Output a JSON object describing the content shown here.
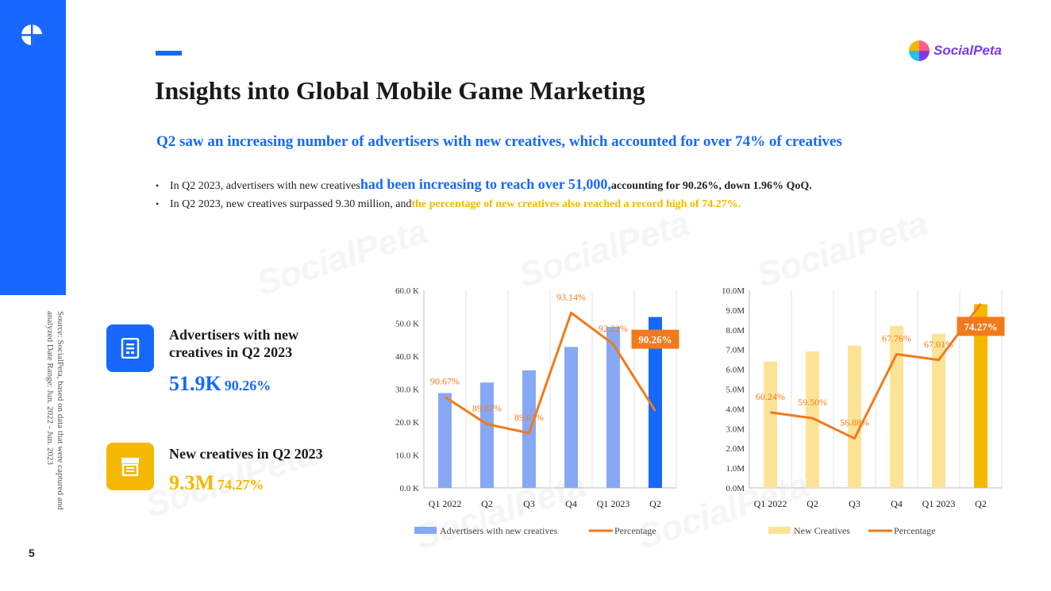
{
  "page_number": "5",
  "source_note": "Source: SocialPeta, based on data that were captured and analyzed Date Range: Jun. 2022 - Jun. 2023",
  "brand_name": "SocialPeta",
  "title": "Insights into Global Mobile Game Marketing",
  "subtitle": "Q2 saw an increasing number of advertisers with new creatives, which accounted for over 74% of creatives",
  "bullets": [
    {
      "prefix": "In Q2 2023, advertisers with new creatives ",
      "highlight": "had been increasing to reach over 51,000,",
      "suffix": " accounting for 90.26%, down 1.96% QoQ."
    },
    {
      "prefix": "In Q2 2023, new creatives surpassed 9.30 million, and ",
      "highlight": "the percentage of new creatives also reached a record high of 74.27%."
    }
  ],
  "cards": [
    {
      "label": "Advertisers with new creatives in Q2 2023",
      "value": "51.9K",
      "percent": "90.26%",
      "color": "#1668ff",
      "icon": "document-icon"
    },
    {
      "label": "New creatives in Q2 2023",
      "value": "9.3M",
      "percent": "74.27%",
      "color": "#f5b800",
      "icon": "store-icon"
    }
  ],
  "chart_data": [
    {
      "type": "bar",
      "categories": [
        "Q1 2022",
        "Q2",
        "Q3",
        "Q4",
        "Q1 2023",
        "Q2"
      ],
      "series": [
        {
          "name": "Advertisers with new creatives",
          "type": "bar",
          "values": [
            28.8,
            32.0,
            35.7,
            42.8,
            48.9,
            51.9
          ],
          "color": "#86a8f5",
          "highlight_color": "#1668ff"
        },
        {
          "name": "Percentage",
          "type": "line",
          "values": [
            90.67,
            89.87,
            89.61,
            93.14,
            92.22,
            90.26
          ],
          "labels": [
            "90.67%",
            "89.87%",
            "89.61%",
            "93.14%",
            "92.22%",
            "90.26%"
          ],
          "color": "#f27a1a"
        }
      ],
      "y_ticks": [
        "0.0 K",
        "10.0 K",
        "20.0 K",
        "30.0 K",
        "40.0 K",
        "50.0 K",
        "60.0 K"
      ],
      "ylim": [
        0,
        60
      ],
      "line_range": [
        88.0,
        93.8
      ],
      "legend": "bottom"
    },
    {
      "type": "bar",
      "categories": [
        "Q1 2022",
        "Q2",
        "Q3",
        "Q4",
        "Q1 2023",
        "Q2"
      ],
      "series": [
        {
          "name": "New Creatives",
          "type": "bar",
          "values": [
            6.4,
            6.9,
            7.2,
            8.2,
            7.8,
            9.3
          ],
          "color": "#fde396",
          "highlight_color": "#f5b800"
        },
        {
          "name": "Percentage",
          "type": "line",
          "values": [
            60.24,
            59.5,
            56.88,
            67.76,
            67.01,
            74.27
          ],
          "labels": [
            "60.24%",
            "59.50%",
            "56.88%",
            "67.76%",
            "67.01%",
            "74.27%"
          ],
          "color": "#f27a1a"
        }
      ],
      "y_ticks": [
        "0.0M",
        "1.0M",
        "2.0M",
        "3.0M",
        "4.0M",
        "5.0M",
        "6.0M",
        "7.0M",
        "8.0M",
        "9.0M",
        "10.0M"
      ],
      "ylim": [
        0,
        10
      ],
      "line_range": [
        50.5,
        76.0
      ],
      "legend": "bottom"
    }
  ]
}
